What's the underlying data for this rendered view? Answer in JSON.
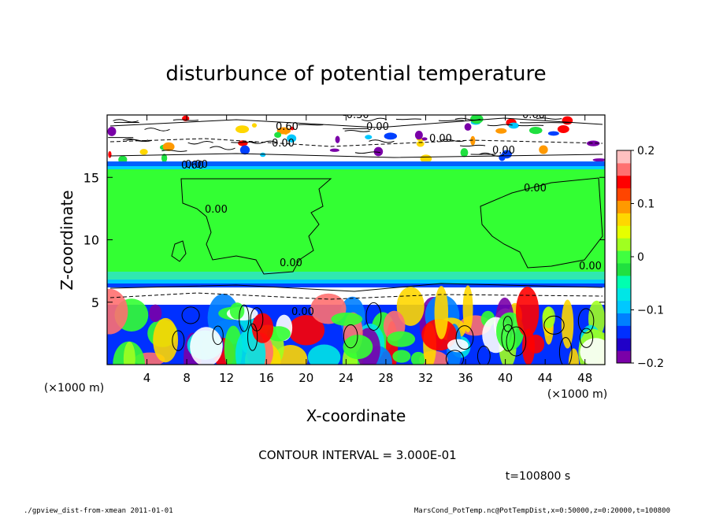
{
  "chart_data": {
    "type": "heatmap",
    "title": "disturbunce of potential temperature",
    "xlabel": "X-coordinate",
    "ylabel": "Z-coordinate",
    "x_unit": "(×1000 m)",
    "x_unit_right": "(×1000 m)",
    "xlim": [
      0,
      50
    ],
    "ylim": [
      0,
      20
    ],
    "xticks": [
      4,
      8,
      12,
      16,
      20,
      24,
      28,
      32,
      36,
      40,
      44,
      48
    ],
    "yticks": [
      5,
      10,
      15
    ],
    "colorbar": {
      "ticks": [
        -0.2,
        -0.1,
        0,
        0.1,
        0.2
      ],
      "tick_labels": [
        "−0.2",
        "−0.1",
        "0",
        "0.1",
        "0.2"
      ],
      "colors": [
        "#7a00a8",
        "#2000c8",
        "#0030ff",
        "#0080ff",
        "#00c8ff",
        "#00e6e6",
        "#00ffb0",
        "#20e040",
        "#40ff40",
        "#a0ff20",
        "#e6ff00",
        "#ffd700",
        "#ff9900",
        "#ff4500",
        "#ff0000",
        "#ff7070",
        "#ffc0c0"
      ]
    },
    "contour_labels": [
      "0.00",
      "0.60",
      "0.00",
      "-0.30",
      "0.00",
      "0.60",
      "0.00",
      "0.00",
      "0.00",
      "0.00",
      "0.00",
      "0.00",
      "0.00",
      "0.60"
    ],
    "contour_interval": "CONTOUR INTERVAL = 3.000E-01",
    "time": "t=100800 s"
  },
  "footer": {
    "left": "./gpview_dist-from-xmean  2011-01-01",
    "right": "MarsCond_PotTemp.nc@PotTempDist,x=0:50000,z=0:20000,t=100800"
  }
}
